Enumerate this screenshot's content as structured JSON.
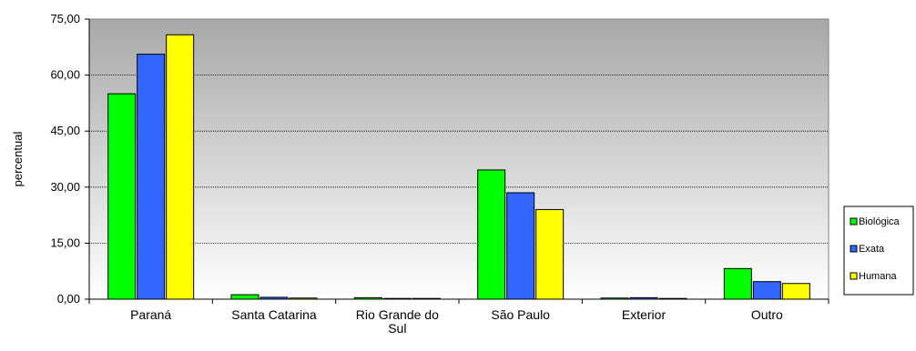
{
  "chart_data": {
    "type": "bar",
    "ylabel": "percentual",
    "xlabel": "",
    "ylim": [
      0,
      75
    ],
    "yticks": [
      "0,00",
      "15,00",
      "30,00",
      "45,00",
      "60,00",
      "75,00"
    ],
    "grid": true,
    "legend_position": "right",
    "categories": [
      "Paraná",
      "Santa Catarina",
      "Rio Grande do Sul",
      "São Paulo",
      "Exterior",
      "Outro"
    ],
    "category_label_lines": [
      [
        "Paraná"
      ],
      [
        "Santa Catarina"
      ],
      [
        "Rio Grande do",
        "Sul"
      ],
      [
        "São Paulo"
      ],
      [
        "Exterior"
      ],
      [
        "Outro"
      ]
    ],
    "series": [
      {
        "name": "Biológica",
        "color": "#00ff00",
        "values": [
          55.0,
          1.2,
          0.4,
          34.6,
          0.3,
          8.2
        ]
      },
      {
        "name": "Exata",
        "color": "#3366ff",
        "values": [
          65.6,
          0.5,
          0.2,
          28.5,
          0.4,
          4.7
        ]
      },
      {
        "name": "Humana",
        "color": "#ffff00",
        "values": [
          70.8,
          0.3,
          0.2,
          24.0,
          0.2,
          4.2
        ]
      }
    ],
    "plot_gradient_top": "#a8a8a8",
    "plot_gradient_bottom": "#ffffff"
  }
}
